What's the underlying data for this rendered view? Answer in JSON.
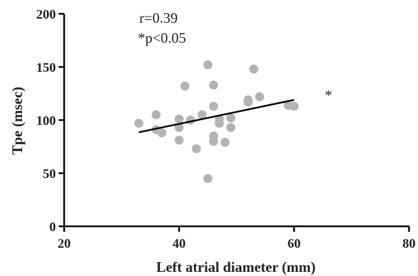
{
  "chart_data": {
    "type": "scatter",
    "xlabel": "Left atrial diameter (mm)",
    "ylabel": "Tpe (msec)",
    "xlim": [
      20,
      80
    ],
    "ylim": [
      0,
      200
    ],
    "xticks": [
      20,
      40,
      60,
      80
    ],
    "yticks": [
      0,
      50,
      100,
      150,
      200
    ],
    "xtick_labels": [
      "20",
      "40",
      "60",
      "80"
    ],
    "ytick_labels": [
      "0",
      "50",
      "100",
      "150",
      "200"
    ],
    "grid": false,
    "point_color": "#b3b3b3",
    "line_color": "#000000",
    "annotations": [
      "r=0.39",
      "*p<0.05",
      "*"
    ],
    "points": [
      {
        "x": 33,
        "y": 97
      },
      {
        "x": 36,
        "y": 105
      },
      {
        "x": 36,
        "y": 91
      },
      {
        "x": 37,
        "y": 88
      },
      {
        "x": 40,
        "y": 101
      },
      {
        "x": 40,
        "y": 93
      },
      {
        "x": 40,
        "y": 81
      },
      {
        "x": 41,
        "y": 132
      },
      {
        "x": 42,
        "y": 100
      },
      {
        "x": 43,
        "y": 73
      },
      {
        "x": 44,
        "y": 105
      },
      {
        "x": 45,
        "y": 152
      },
      {
        "x": 45,
        "y": 45
      },
      {
        "x": 46,
        "y": 133
      },
      {
        "x": 46,
        "y": 113
      },
      {
        "x": 46,
        "y": 85
      },
      {
        "x": 46,
        "y": 80
      },
      {
        "x": 47,
        "y": 101
      },
      {
        "x": 47,
        "y": 97
      },
      {
        "x": 48,
        "y": 79
      },
      {
        "x": 49,
        "y": 102
      },
      {
        "x": 49,
        "y": 93
      },
      {
        "x": 52,
        "y": 119
      },
      {
        "x": 52,
        "y": 117
      },
      {
        "x": 53,
        "y": 148
      },
      {
        "x": 54,
        "y": 122
      },
      {
        "x": 59,
        "y": 114
      },
      {
        "x": 60,
        "y": 113
      }
    ],
    "regression": {
      "x": [
        33,
        60
      ],
      "y": [
        88.5,
        119
      ]
    }
  }
}
